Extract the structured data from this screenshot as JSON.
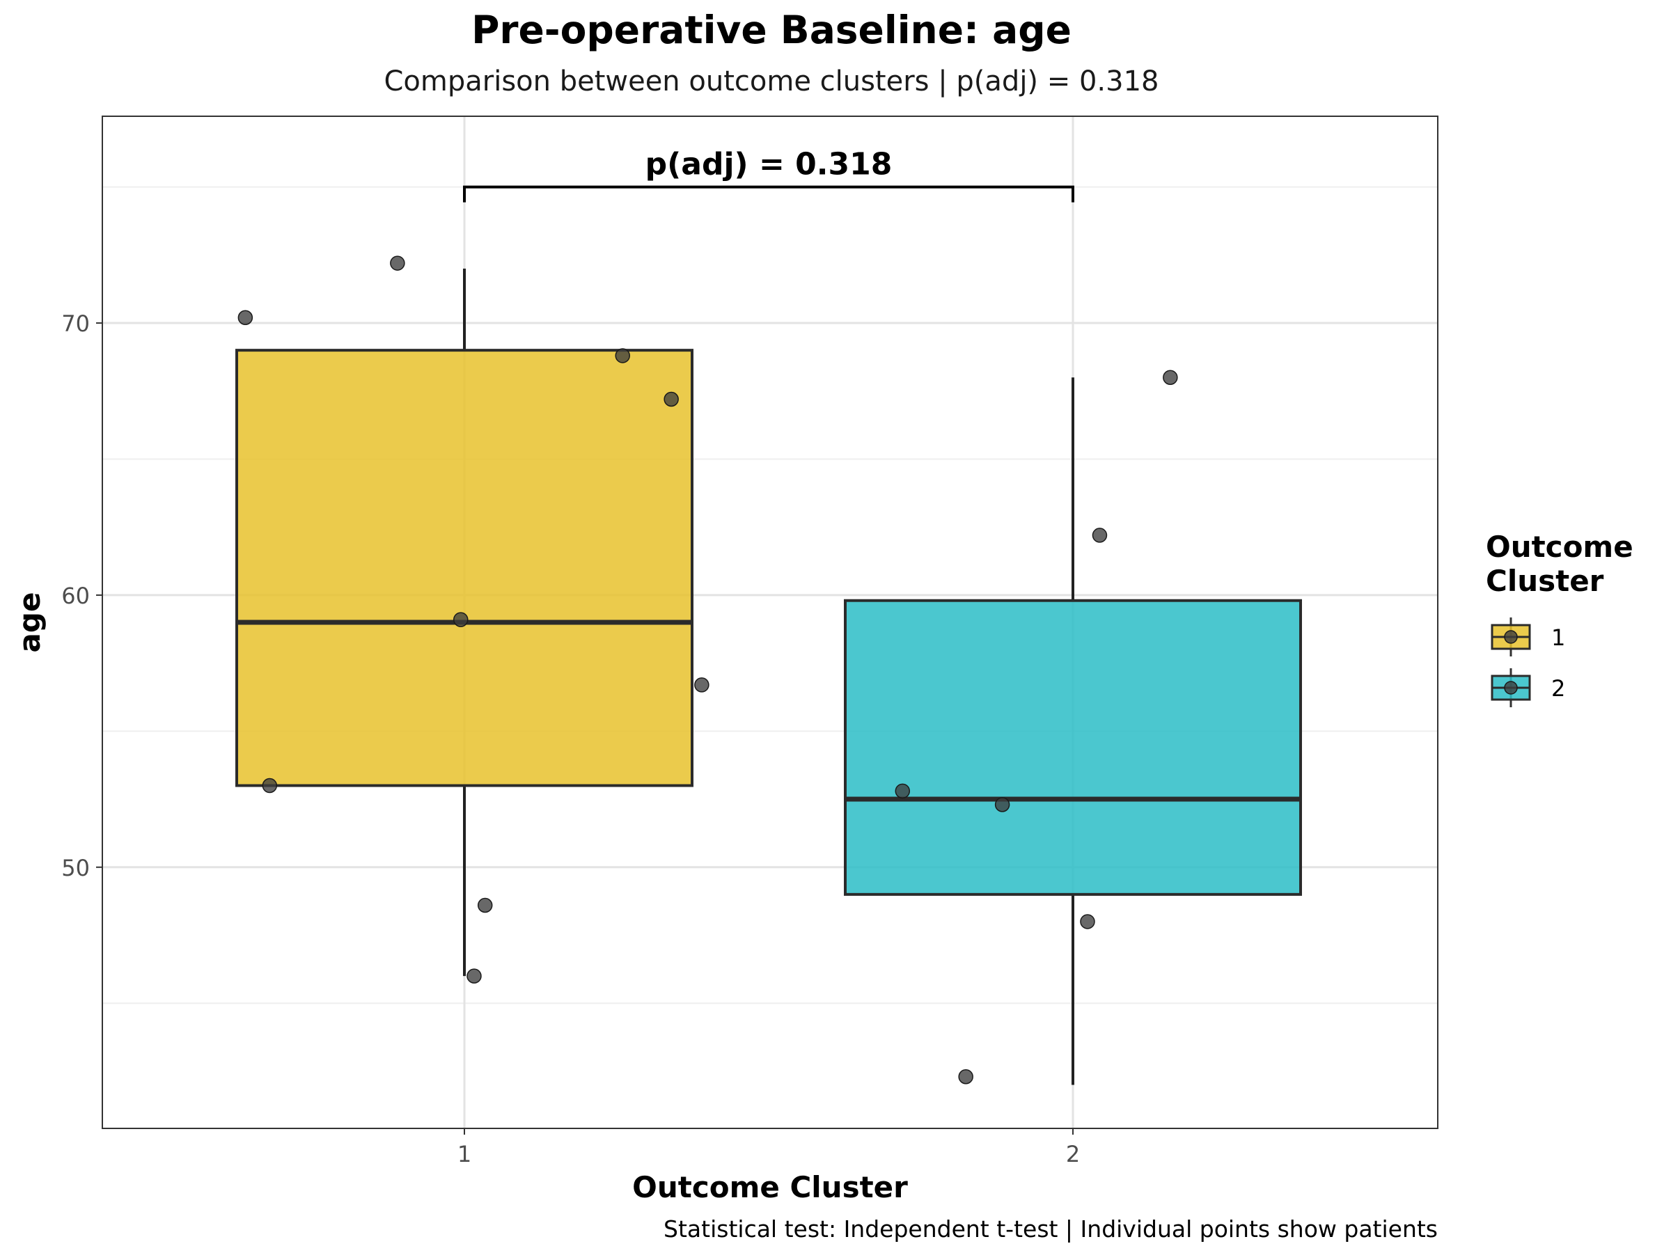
{
  "chart_data": {
    "type": "boxplot",
    "title": "Pre-operative Baseline: age",
    "subtitle": "Comparison between outcome clusters | p(adj) = 0.318",
    "xlabel": "Outcome Cluster",
    "ylabel": "age",
    "caption": "Statistical test: Independent t-test | Individual points show patients",
    "ylim": [
      40.4,
      77.6
    ],
    "yticks": [
      50,
      60,
      70
    ],
    "grid": true,
    "legend": {
      "title_lines": [
        "Outcome",
        "Cluster"
      ],
      "placement": "right",
      "items": [
        {
          "label": "1",
          "color": "#E8C22D"
        },
        {
          "label": "2",
          "color": "#2CBDC7"
        }
      ]
    },
    "annotation": {
      "text": "p(adj) = 0.318",
      "from": "1",
      "to": "2",
      "y": 75.0
    },
    "categories": [
      "1",
      "2"
    ],
    "boxes": [
      {
        "category": "1",
        "color": "#E8C22D",
        "whisker_low": 46.0,
        "q1": 53.0,
        "median": 59.0,
        "q3": 69.0,
        "whisker_high": 72.0
      },
      {
        "category": "2",
        "color": "#2CBDC7",
        "whisker_low": 42.0,
        "q1": 49.0,
        "median": 52.5,
        "q3": 59.8,
        "whisker_high": 68.0
      }
    ],
    "points": [
      {
        "category": "1",
        "jitter": -0.18,
        "y": 70.2
      },
      {
        "category": "1",
        "jitter": -0.055,
        "y": 72.2
      },
      {
        "category": "1",
        "jitter": 0.13,
        "y": 68.8
      },
      {
        "category": "1",
        "jitter": 0.17,
        "y": 67.2
      },
      {
        "category": "1",
        "jitter": -0.003,
        "y": 59.1
      },
      {
        "category": "1",
        "jitter": 0.195,
        "y": 56.7
      },
      {
        "category": "1",
        "jitter": -0.16,
        "y": 53.0
      },
      {
        "category": "1",
        "jitter": 0.017,
        "y": 48.6
      },
      {
        "category": "1",
        "jitter": 0.008,
        "y": 46.0
      },
      {
        "category": "2",
        "jitter": 0.08,
        "y": 68.0
      },
      {
        "category": "2",
        "jitter": 0.022,
        "y": 62.2
      },
      {
        "category": "2",
        "jitter": -0.14,
        "y": 52.8
      },
      {
        "category": "2",
        "jitter": -0.058,
        "y": 52.3
      },
      {
        "category": "2",
        "jitter": 0.012,
        "y": 48.0
      },
      {
        "category": "2",
        "jitter": -0.088,
        "y": 42.3
      }
    ]
  }
}
